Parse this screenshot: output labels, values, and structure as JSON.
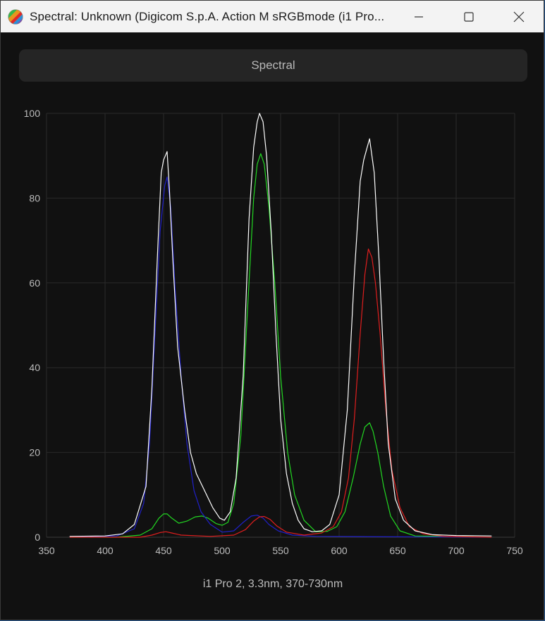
{
  "window": {
    "title": "Spectral: Unknown (Digicom S.p.A. Action M sRGBmode (i1 Pro...",
    "controls": {
      "minimize": "minimize-icon",
      "maximize": "maximize-icon",
      "close": "close-icon"
    }
  },
  "tab": {
    "label": "Spectral"
  },
  "caption": "i1 Pro 2, 3.3nm, 370-730nm",
  "colors": {
    "background": "#111111",
    "grid": "#2a2a2a",
    "axis_text": "#bcbcbc",
    "white_series": "#ffffff",
    "green_series": "#22d822",
    "blue_series": "#2020c8",
    "red_series": "#e01e1e"
  },
  "chart_data": {
    "type": "line",
    "title": "",
    "xlabel": "",
    "ylabel": "",
    "xlim": [
      350,
      750
    ],
    "ylim": [
      0,
      100
    ],
    "xticks": [
      350,
      400,
      450,
      500,
      550,
      600,
      650,
      700,
      750
    ],
    "yticks": [
      0,
      20,
      40,
      60,
      80,
      100
    ],
    "grid": true,
    "legend": "none",
    "series": [
      {
        "color": "#ffffff",
        "points": [
          [
            370,
            0.2
          ],
          [
            400,
            0.3
          ],
          [
            415,
            0.8
          ],
          [
            425,
            3
          ],
          [
            435,
            12
          ],
          [
            440,
            35
          ],
          [
            445,
            68
          ],
          [
            448,
            86
          ],
          [
            450,
            89
          ],
          [
            453,
            91
          ],
          [
            455,
            82
          ],
          [
            458,
            65
          ],
          [
            462,
            45
          ],
          [
            468,
            30
          ],
          [
            473,
            20
          ],
          [
            478,
            15
          ],
          [
            485,
            11
          ],
          [
            492,
            7
          ],
          [
            498,
            4.5
          ],
          [
            502,
            4
          ],
          [
            507,
            6
          ],
          [
            512,
            14
          ],
          [
            518,
            38
          ],
          [
            523,
            75
          ],
          [
            527,
            92
          ],
          [
            530,
            98
          ],
          [
            532,
            100
          ],
          [
            535,
            98
          ],
          [
            538,
            90
          ],
          [
            542,
            72
          ],
          [
            546,
            48
          ],
          [
            550,
            28
          ],
          [
            555,
            15
          ],
          [
            560,
            8
          ],
          [
            565,
            4
          ],
          [
            570,
            2
          ],
          [
            577,
            1.3
          ],
          [
            585,
            1.5
          ],
          [
            592,
            3
          ],
          [
            600,
            10
          ],
          [
            607,
            30
          ],
          [
            613,
            62
          ],
          [
            618,
            84
          ],
          [
            621,
            89
          ],
          [
            624,
            92
          ],
          [
            626,
            94
          ],
          [
            628,
            90
          ],
          [
            630,
            86
          ],
          [
            634,
            66
          ],
          [
            638,
            42
          ],
          [
            642,
            22
          ],
          [
            648,
            9
          ],
          [
            655,
            4
          ],
          [
            665,
            1.5
          ],
          [
            680,
            0.6
          ],
          [
            700,
            0.4
          ],
          [
            730,
            0.3
          ]
        ]
      },
      {
        "color": "#22d822",
        "points": [
          [
            370,
            0
          ],
          [
            410,
            0
          ],
          [
            430,
            0.5
          ],
          [
            440,
            2
          ],
          [
            446,
            4.5
          ],
          [
            450,
            5.5
          ],
          [
            453,
            5.5
          ],
          [
            457,
            4.5
          ],
          [
            463,
            3.3
          ],
          [
            470,
            3.8
          ],
          [
            477,
            4.8
          ],
          [
            483,
            5
          ],
          [
            488,
            4.5
          ],
          [
            495,
            3.2
          ],
          [
            500,
            2.8
          ],
          [
            505,
            3.5
          ],
          [
            510,
            8
          ],
          [
            516,
            24
          ],
          [
            522,
            55
          ],
          [
            527,
            80
          ],
          [
            530,
            88
          ],
          [
            533,
            90.5
          ],
          [
            536,
            88
          ],
          [
            540,
            78
          ],
          [
            545,
            60
          ],
          [
            550,
            38
          ],
          [
            556,
            20
          ],
          [
            562,
            10
          ],
          [
            570,
            4
          ],
          [
            580,
            1.3
          ],
          [
            590,
            1.4
          ],
          [
            598,
            2.5
          ],
          [
            605,
            6
          ],
          [
            612,
            14
          ],
          [
            618,
            22
          ],
          [
            622,
            26
          ],
          [
            626,
            27
          ],
          [
            629,
            25
          ],
          [
            633,
            20
          ],
          [
            638,
            12
          ],
          [
            644,
            5
          ],
          [
            652,
            1.5
          ],
          [
            665,
            0.3
          ],
          [
            730,
            0
          ]
        ]
      },
      {
        "color": "#2020c8",
        "points": [
          [
            370,
            0
          ],
          [
            410,
            0.3
          ],
          [
            425,
            2
          ],
          [
            433,
            8
          ],
          [
            438,
            22
          ],
          [
            443,
            50
          ],
          [
            447,
            72
          ],
          [
            451,
            83
          ],
          [
            453,
            85
          ],
          [
            456,
            78
          ],
          [
            460,
            58
          ],
          [
            465,
            38
          ],
          [
            470,
            22
          ],
          [
            476,
            11
          ],
          [
            482,
            6
          ],
          [
            490,
            3
          ],
          [
            500,
            1.2
          ],
          [
            510,
            1.5
          ],
          [
            518,
            3.5
          ],
          [
            525,
            5
          ],
          [
            530,
            5.2
          ],
          [
            535,
            4.5
          ],
          [
            540,
            3
          ],
          [
            548,
            1.5
          ],
          [
            560,
            0.5
          ],
          [
            580,
            0.2
          ],
          [
            730,
            0
          ]
        ]
      },
      {
        "color": "#e01e1e",
        "points": [
          [
            370,
            0
          ],
          [
            430,
            0
          ],
          [
            440,
            0.5
          ],
          [
            447,
            1.1
          ],
          [
            452,
            1.3
          ],
          [
            457,
            1
          ],
          [
            465,
            0.5
          ],
          [
            490,
            0.2
          ],
          [
            510,
            0.5
          ],
          [
            520,
            1.8
          ],
          [
            527,
            3.8
          ],
          [
            532,
            4.8
          ],
          [
            536,
            4.9
          ],
          [
            541,
            4.2
          ],
          [
            547,
            2.6
          ],
          [
            555,
            1.2
          ],
          [
            570,
            0.5
          ],
          [
            585,
            1
          ],
          [
            595,
            2.5
          ],
          [
            602,
            6
          ],
          [
            608,
            14
          ],
          [
            613,
            28
          ],
          [
            618,
            48
          ],
          [
            622,
            62
          ],
          [
            625,
            68
          ],
          [
            628,
            66
          ],
          [
            631,
            60
          ],
          [
            635,
            48
          ],
          [
            640,
            30
          ],
          [
            645,
            16
          ],
          [
            652,
            7
          ],
          [
            660,
            2.5
          ],
          [
            672,
            0.8
          ],
          [
            690,
            0.2
          ],
          [
            730,
            0
          ]
        ]
      }
    ]
  }
}
